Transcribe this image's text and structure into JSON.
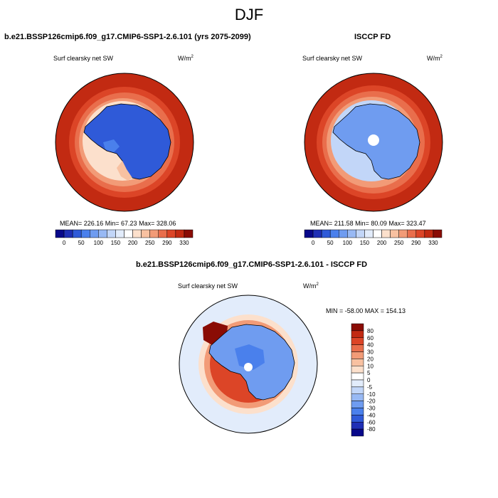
{
  "header": {
    "season": "DJF"
  },
  "panels": {
    "model": {
      "title": "b.e21.BSSP126cmip6.f09_g17.CMIP6-SSP1-2.6.101 (yrs 2075-2099)",
      "variable": "Surf clearsky net SW",
      "unit_base": "W/m",
      "unit_exp": "2",
      "stats": "MEAN= 226.16  Min=  67.23  Max= 328.06"
    },
    "obs": {
      "title": "ISCCP FD",
      "variable": "Surf clearsky net SW",
      "unit_base": "W/m",
      "unit_exp": "2",
      "stats": "MEAN= 211.58  Min=  80.09  Max= 323.47"
    },
    "diff": {
      "title": "b.e21.BSSP126cmip6.f09_g17.CMIP6-SSP1-2.6.101 - ISCCP FD",
      "variable": "Surf clearsky net SW",
      "unit_base": "W/m",
      "unit_exp": "2",
      "stats": "MIN = -58.00 MAX = 154.13"
    }
  },
  "colorbar_abs": {
    "colors": [
      "#08088a",
      "#1f2fb5",
      "#2f5ad8",
      "#4a80ec",
      "#6f9cf0",
      "#98b9f4",
      "#c2d6f8",
      "#e2ecfb",
      "#ffffff",
      "#fce0cc",
      "#f8c1a1",
      "#f29b77",
      "#e96e4c",
      "#dc4527",
      "#c22a12",
      "#8a0c05"
    ],
    "tick_labels": [
      "0",
      "50",
      "100",
      "150",
      "200",
      "250",
      "290",
      "330"
    ]
  },
  "colorbar_diff": {
    "colors": [
      "#8a0c05",
      "#c22a12",
      "#dc4527",
      "#e96e4c",
      "#f29b77",
      "#f8c1a1",
      "#fce0cc",
      "#ffffff",
      "#e2ecfb",
      "#c2d6f8",
      "#98b9f4",
      "#6f9cf0",
      "#4a80ec",
      "#2f5ad8",
      "#1f2fb5",
      "#08088a"
    ],
    "tick_labels": [
      "80",
      "60",
      "40",
      "30",
      "20",
      "10",
      "5",
      "0",
      "-5",
      "-10",
      "-20",
      "-30",
      "-40",
      "-60",
      "-80"
    ]
  }
}
